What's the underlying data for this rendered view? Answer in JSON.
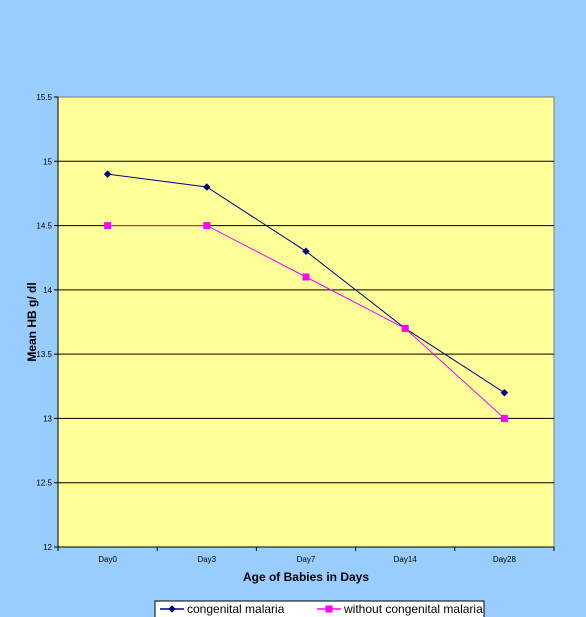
{
  "colors": {
    "background": "#99ccff",
    "plot_area": "#ffff99",
    "series_1": "#000080",
    "series_2": "#ff00ff"
  },
  "chart_data": {
    "type": "line",
    "title": "",
    "xlabel": "Age of Babies in Days",
    "ylabel": "Mean HB g/ dl",
    "categories": [
      "Day0",
      "Day3",
      "Day7",
      "Day14",
      "Day28"
    ],
    "ylim": [
      12,
      15.5
    ],
    "yticks": [
      "12",
      "12.5",
      "13",
      "13.5",
      "14",
      "14.5",
      "15",
      "15.5"
    ],
    "grid": true,
    "legend_position": "bottom",
    "series": [
      {
        "name": "congenital malaria",
        "values": [
          14.9,
          14.8,
          14.3,
          13.7,
          13.2
        ],
        "marker": "diamond",
        "color": "#000080"
      },
      {
        "name": "without congenital malaria",
        "values": [
          14.5,
          14.5,
          14.1,
          13.7,
          13.0
        ],
        "marker": "square",
        "color": "#ff00ff"
      }
    ]
  }
}
